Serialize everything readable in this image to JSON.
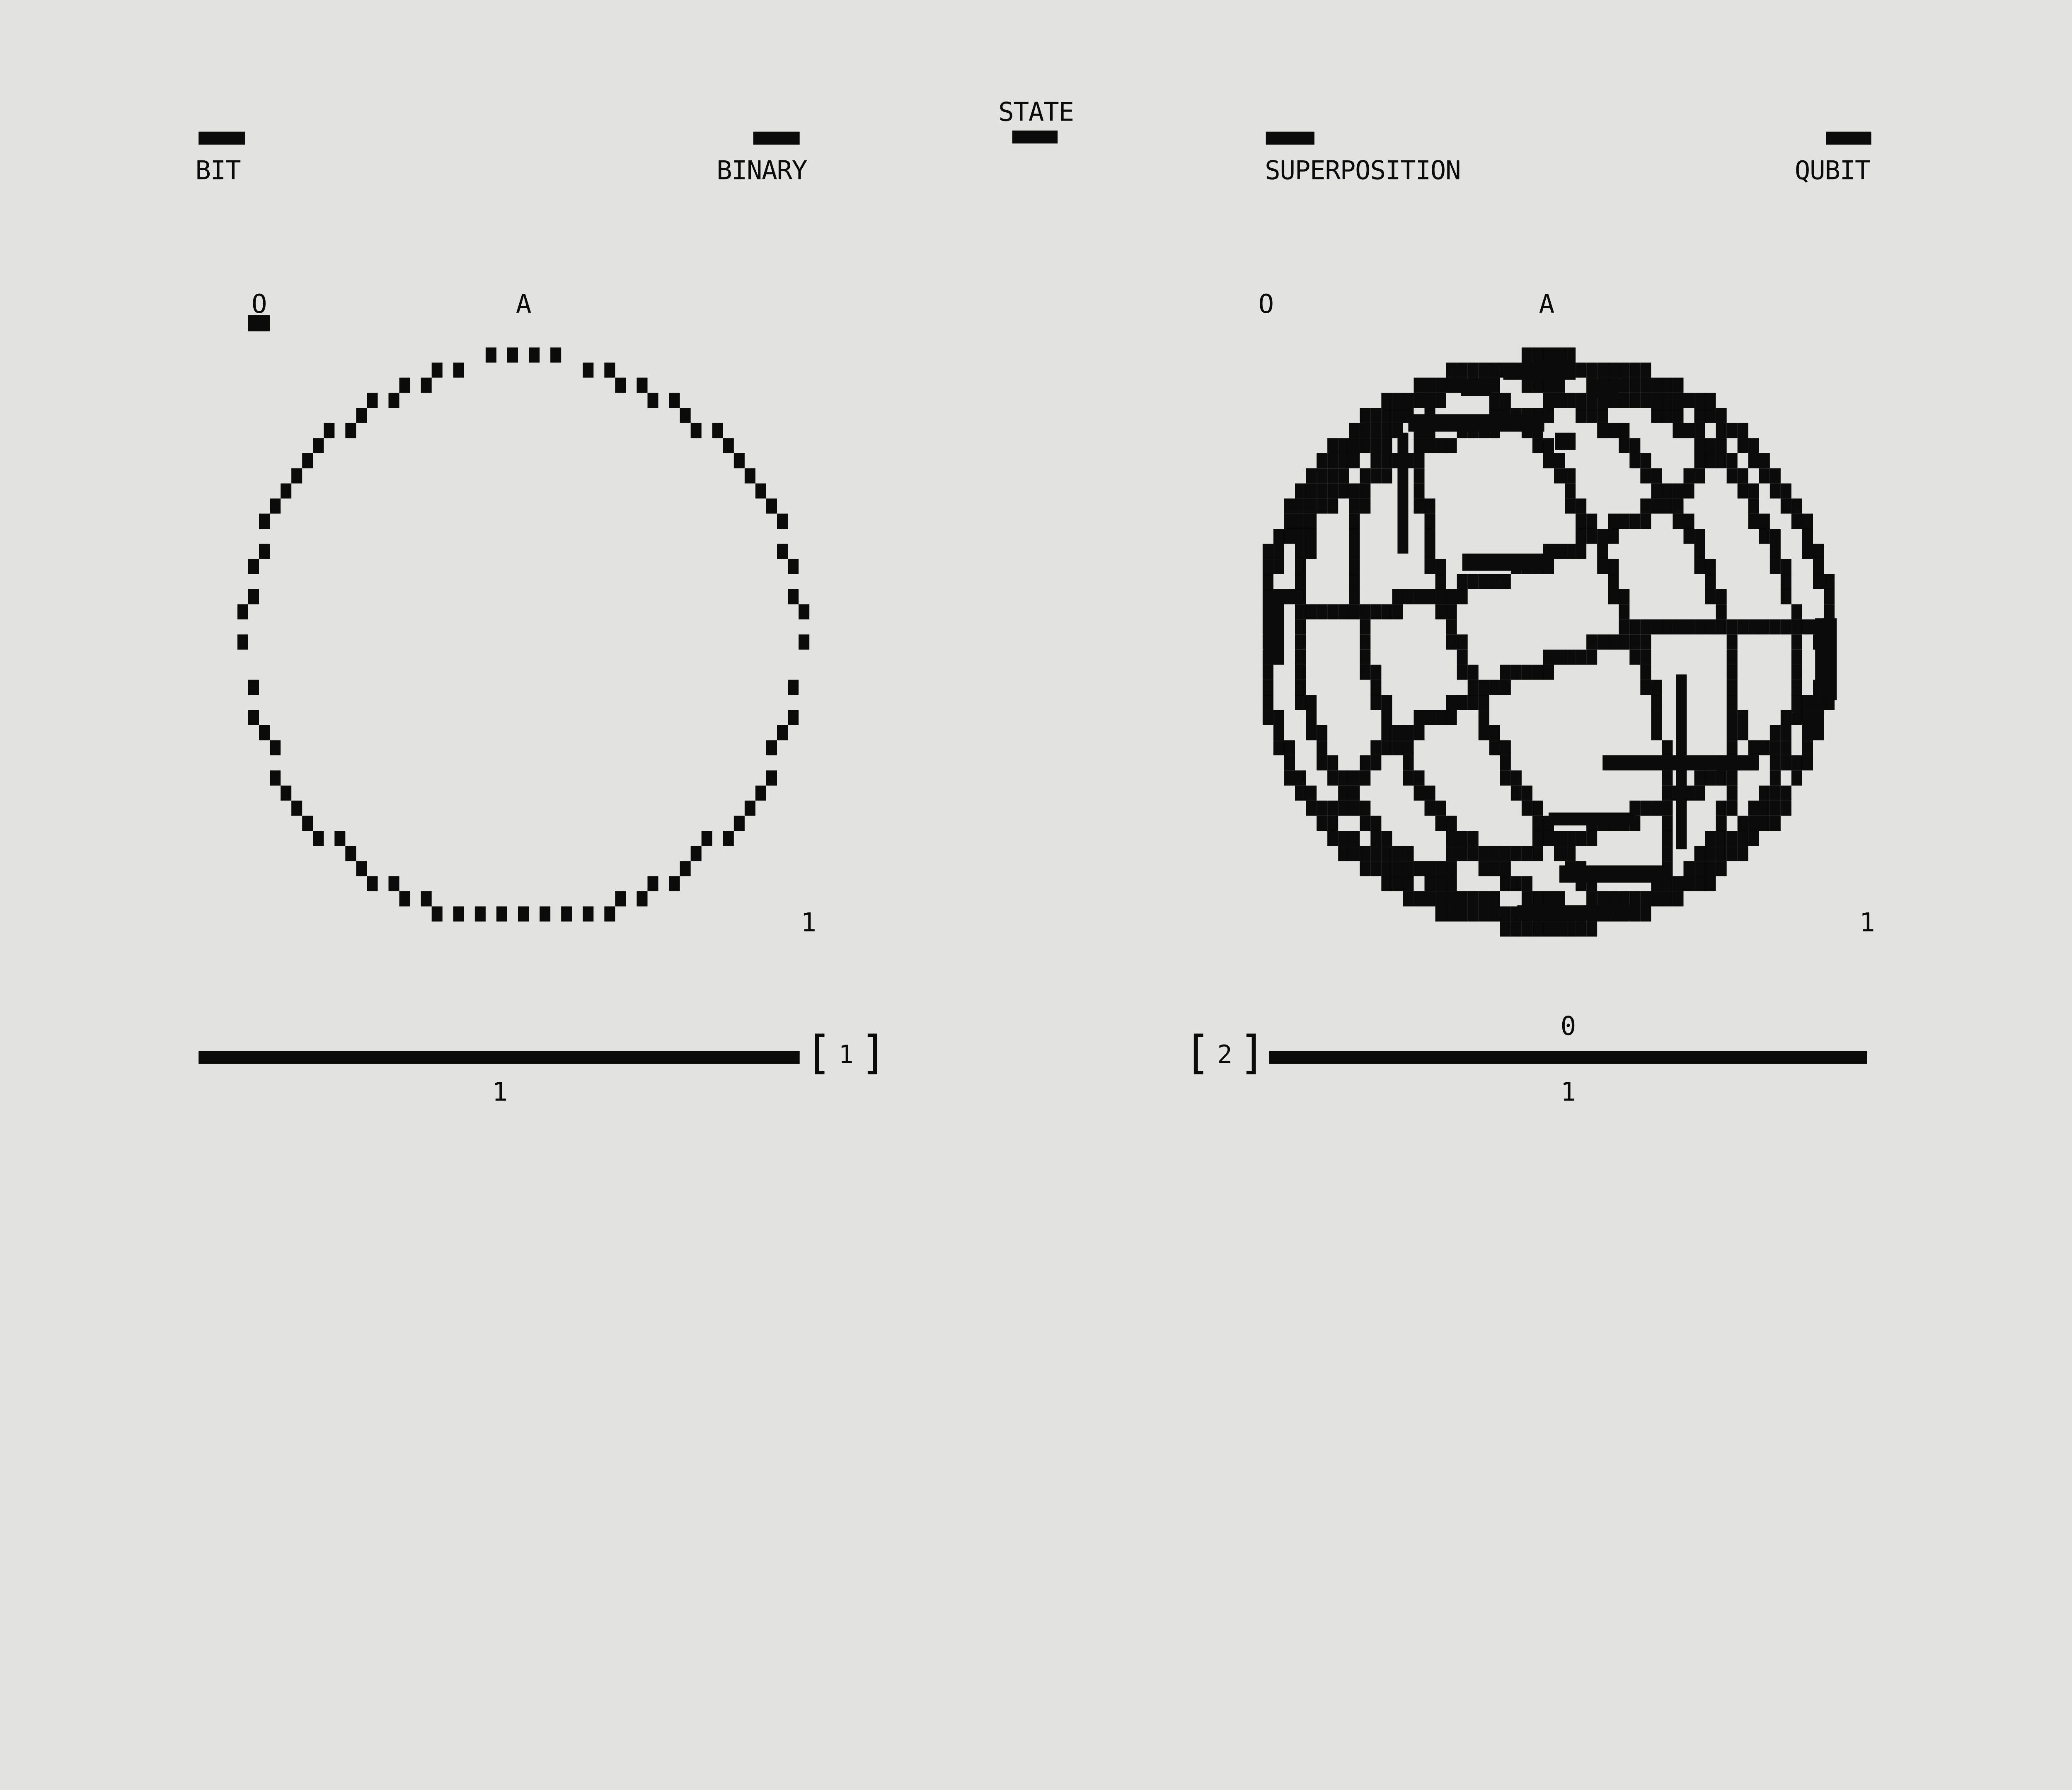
{
  "colors": {
    "background": "#e2e2e1",
    "ink": "#0b0b0b"
  },
  "header": {
    "center_label": "STATE",
    "items": [
      {
        "label": "BIT"
      },
      {
        "label": "BINARY"
      },
      {
        "label": "SUPERPOSITION"
      },
      {
        "label": "QUBIT"
      }
    ]
  },
  "panels": [
    {
      "name": "bit",
      "figure": {
        "open": "[",
        "number": "1",
        "close": "]"
      },
      "labels": {
        "origin": "O",
        "top": "A",
        "side": "1"
      },
      "bar": {
        "below_label": "1"
      }
    },
    {
      "name": "qubit",
      "figure": {
        "open": "[",
        "number": "2",
        "close": "]"
      },
      "labels": {
        "origin": "O",
        "top": "A",
        "side": "1"
      },
      "bar": {
        "above_label": "0",
        "below_label": "1"
      }
    }
  ]
}
